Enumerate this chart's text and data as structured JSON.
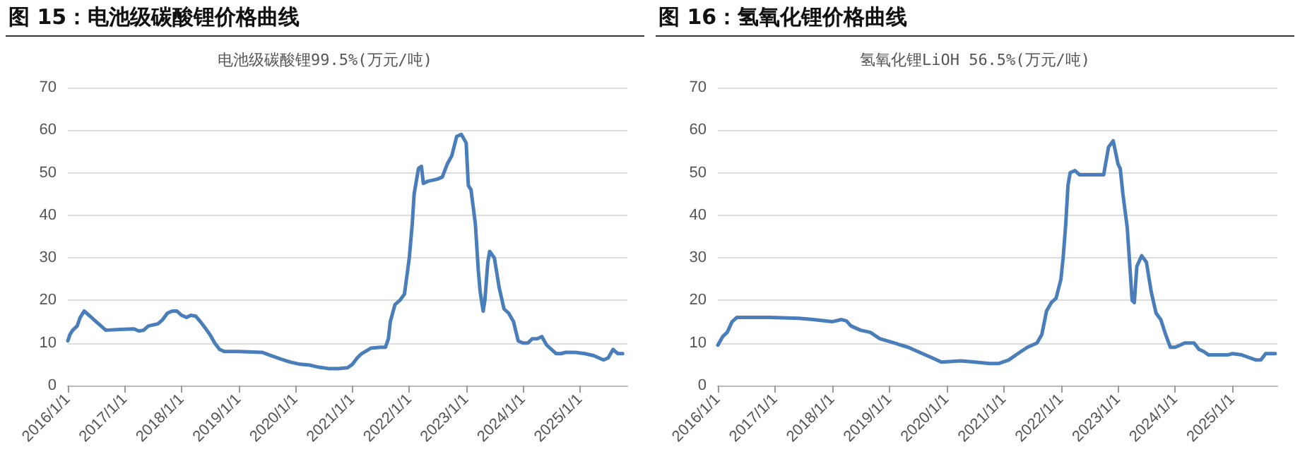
{
  "chart_data": [
    {
      "type": "line",
      "title": "图 15：电池级碳酸锂价格曲线",
      "subtitle": "电池级碳酸锂99.5%(万元/吨)",
      "x": [
        "2016-01-01",
        "2016-01-15",
        "2016-02-01",
        "2016-03-01",
        "2016-03-20",
        "2016-04-15",
        "2016-05-01",
        "2016-06-01",
        "2016-07-01",
        "2016-08-01",
        "2016-09-01",
        "2016-12-01",
        "2017-03-01",
        "2017-04-01",
        "2017-05-01",
        "2017-06-01",
        "2017-08-01",
        "2017-09-01",
        "2017-10-01",
        "2017-11-01",
        "2017-12-01",
        "2018-01-01",
        "2018-02-01",
        "2018-03-01",
        "2018-04-01",
        "2018-05-01",
        "2018-06-01",
        "2018-07-01",
        "2018-08-01",
        "2018-09-01",
        "2018-10-01",
        "2019-01-01",
        "2019-06-01",
        "2019-08-01",
        "2019-10-01",
        "2019-12-01",
        "2020-02-01",
        "2020-04-01",
        "2020-06-01",
        "2020-08-01",
        "2020-10-01",
        "2020-12-01",
        "2021-01-01",
        "2021-02-01",
        "2021-03-01",
        "2021-05-01",
        "2021-07-01",
        "2021-08-01",
        "2021-08-20",
        "2021-09-01",
        "2021-10-01",
        "2021-11-01",
        "2021-12-01",
        "2022-01-01",
        "2022-01-20",
        "2022-02-01",
        "2022-03-01",
        "2022-03-20",
        "2022-04-01",
        "2022-05-01",
        "2022-07-01",
        "2022-08-01",
        "2022-09-01",
        "2022-10-01",
        "2022-11-01",
        "2022-12-01",
        "2023-01-01",
        "2023-01-15",
        "2023-02-01",
        "2023-03-01",
        "2023-03-20",
        "2023-04-01",
        "2023-04-20",
        "2023-05-01",
        "2023-05-20",
        "2023-06-01",
        "2023-07-01",
        "2023-08-01",
        "2023-09-01",
        "2023-10-01",
        "2023-11-01",
        "2023-12-01",
        "2024-01-01",
        "2024-02-01",
        "2024-03-01",
        "2024-04-01",
        "2024-05-01",
        "2024-06-01",
        "2024-07-01",
        "2024-08-01",
        "2024-09-01",
        "2024-10-01",
        "2024-12-01",
        "2025-02-01",
        "2025-04-01",
        "2025-06-01",
        "2025-07-01",
        "2025-08-01",
        "2025-09-01",
        "2025-10-01"
      ],
      "series": [
        {
          "color": "#4a7ebb",
          "values": [
            10.5,
            12,
            13,
            14,
            16,
            17.5,
            17,
            16,
            15,
            14,
            13,
            13.2,
            13.3,
            12.8,
            13,
            14,
            14.5,
            15.5,
            17,
            17.5,
            17.5,
            16.5,
            16,
            16.5,
            16.3,
            15,
            13.5,
            12,
            10,
            8.5,
            8,
            8,
            7.8,
            7,
            6.2,
            5.5,
            5,
            4.8,
            4.3,
            4,
            4,
            4.2,
            5,
            6.5,
            7.5,
            8.8,
            9,
            9,
            11,
            15,
            19,
            20,
            21.5,
            30,
            38,
            45,
            51,
            51.5,
            47.5,
            48,
            48.5,
            49,
            52,
            54,
            58.5,
            59,
            57,
            47,
            46,
            38,
            27,
            22,
            17.5,
            20,
            29,
            31.5,
            30,
            23,
            18,
            17,
            15,
            10.5,
            10,
            10,
            11,
            11,
            11.5,
            9.5,
            8.5,
            7.5,
            7.5,
            7.8,
            7.8,
            7.5,
            7,
            6,
            6.5,
            8.5,
            7.5,
            7.5
          ]
        }
      ],
      "xlim": [
        "2016-01-01",
        "2025-11-01"
      ],
      "xticks": [
        {
          "value": "2016-01-01",
          "label": "2016/1/1"
        },
        {
          "value": "2017-01-01",
          "label": "2017/1/1"
        },
        {
          "value": "2018-01-01",
          "label": "2018/1/1"
        },
        {
          "value": "2019-01-01",
          "label": "2019/1/1"
        },
        {
          "value": "2020-01-01",
          "label": "2020/1/1"
        },
        {
          "value": "2021-01-01",
          "label": "2021/1/1"
        },
        {
          "value": "2022-01-01",
          "label": "2022/1/1"
        },
        {
          "value": "2023-01-01",
          "label": "2023/1/1"
        },
        {
          "value": "2024-01-01",
          "label": "2024/1/1"
        },
        {
          "value": "2025-01-01",
          "label": "2025/1/1"
        }
      ],
      "ylim": [
        0,
        70
      ],
      "yticks": [
        0,
        10,
        20,
        30,
        40,
        50,
        60,
        70
      ],
      "grid": "y",
      "marker": "none",
      "line_style": "solid"
    },
    {
      "type": "line",
      "title": "图 16：氢氧化锂价格曲线",
      "subtitle": "氢氧化锂LiOH 56.5%(万元/吨)",
      "x": [
        "2016-01-01",
        "2016-02-01",
        "2016-03-01",
        "2016-04-01",
        "2016-05-01",
        "2016-12-01",
        "2017-06-01",
        "2017-09-01",
        "2018-01-01",
        "2018-03-01",
        "2018-04-01",
        "2018-05-01",
        "2018-07-01",
        "2018-09-01",
        "2018-11-01",
        "2019-02-01",
        "2019-05-01",
        "2019-07-01",
        "2019-10-01",
        "2019-12-01",
        "2020-04-01",
        "2020-07-01",
        "2020-10-01",
        "2020-12-01",
        "2021-02-01",
        "2021-04-01",
        "2021-06-01",
        "2021-08-01",
        "2021-09-01",
        "2021-10-01",
        "2021-11-01",
        "2021-12-01",
        "2022-01-01",
        "2022-01-15",
        "2022-02-01",
        "2022-02-15",
        "2022-03-01",
        "2022-04-01",
        "2022-05-01",
        "2022-10-01",
        "2022-11-01",
        "2022-12-01",
        "2023-01-01",
        "2023-01-15",
        "2023-02-01",
        "2023-03-01",
        "2023-04-01",
        "2023-04-15",
        "2023-05-01",
        "2023-06-01",
        "2023-07-01",
        "2023-08-01",
        "2023-09-01",
        "2023-10-01",
        "2023-11-01",
        "2023-12-01",
        "2024-01-01",
        "2024-02-01",
        "2024-03-01",
        "2024-05-01",
        "2024-06-01",
        "2024-07-01",
        "2024-08-01",
        "2024-12-01",
        "2025-01-01",
        "2025-03-01",
        "2025-06-01",
        "2025-07-01",
        "2025-08-01",
        "2025-10-01"
      ],
      "series": [
        {
          "color": "#4a7ebb",
          "values": [
            9.5,
            11.5,
            12.5,
            15,
            16,
            16,
            15.8,
            15.5,
            15,
            15.5,
            15.2,
            14,
            13,
            12.5,
            11,
            10,
            9,
            8,
            6.5,
            5.5,
            5.8,
            5.5,
            5.2,
            5.2,
            6,
            7.5,
            9,
            10,
            12,
            17.5,
            19.5,
            20.5,
            25,
            30,
            38,
            47,
            50,
            50.5,
            49.5,
            49.5,
            56,
            57.5,
            52,
            51,
            45,
            37,
            20,
            19.5,
            28,
            30.5,
            29,
            22,
            17,
            15.5,
            12,
            9,
            9,
            9.5,
            10,
            10,
            8.5,
            8,
            7.2,
            7.2,
            7.5,
            7.2,
            6,
            6,
            7.5,
            7.5
          ]
        }
      ],
      "xlim": [
        "2016-01-01",
        "2025-10-15"
      ],
      "xticks": [
        {
          "value": "2016-01-01",
          "label": "2016/1/1"
        },
        {
          "value": "2017-01-01",
          "label": "2017/1/1"
        },
        {
          "value": "2018-01-01",
          "label": "2018/1/1"
        },
        {
          "value": "2019-01-01",
          "label": "2019/1/1"
        },
        {
          "value": "2020-01-01",
          "label": "2020/1/1"
        },
        {
          "value": "2021-01-01",
          "label": "2021/1/1"
        },
        {
          "value": "2022-01-01",
          "label": "2022/1/1"
        },
        {
          "value": "2023-01-01",
          "label": "2023/1/1"
        },
        {
          "value": "2024-01-01",
          "label": "2024/1/1"
        },
        {
          "value": "2025-01-01",
          "label": "2025/1/1"
        }
      ],
      "ylim": [
        0,
        70
      ],
      "yticks": [
        0,
        10,
        20,
        30,
        40,
        50,
        60,
        70
      ],
      "grid": "y",
      "marker": "none",
      "line_style": "solid"
    }
  ]
}
